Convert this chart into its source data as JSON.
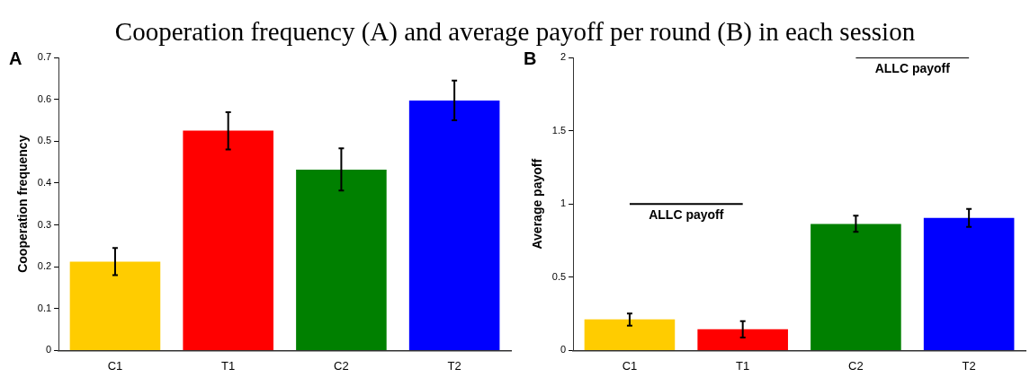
{
  "chart_data": [
    {
      "type": "bar",
      "title": "A",
      "annotations": [
        "Cooperation frequency (A) and average payoff per round (B) in each session"
      ],
      "ylabel": "Cooperation frequency",
      "categories": [
        "C1",
        "T1",
        "C2",
        "T2"
      ],
      "values": [
        0.212,
        0.525,
        0.432,
        0.597
      ],
      "colors": [
        "#ffcc00",
        "#ff0000",
        "#008000",
        "#0000ff"
      ],
      "errors": [
        [
          0.18,
          0.245
        ],
        [
          0.48,
          0.569
        ],
        [
          0.382,
          0.483
        ],
        [
          0.55,
          0.645
        ]
      ],
      "ylim": [
        0,
        0.7
      ],
      "yticks": [
        0,
        0.1,
        0.2,
        0.3,
        0.4,
        0.5,
        0.6,
        0.7
      ],
      "grid": false,
      "legend": false
    },
    {
      "type": "bar",
      "title": "B",
      "ylabel": "Average payoff",
      "categories": [
        "C1",
        "T1",
        "C2",
        "T2"
      ],
      "marker": "none",
      "series": [
        {
          "colors": [
            "#ffcc00",
            "#ff0000",
            "#008000",
            "#0000ff"
          ],
          "values": [
            0.212,
            0.145,
            0.863,
            0.905
          ],
          "errors": [
            [
              0.169,
              0.252
            ],
            [
              0.088,
              0.2
            ],
            [
              0.81,
              0.92
            ],
            [
              0.843,
              0.966
            ]
          ]
        },
        {
          "type": "line",
          "name": "ALLC payoff",
          "color": "#000000",
          "values": [
            1,
            1,
            null,
            null
          ]
        },
        {
          "type": "line",
          "name": "ALLC payoff",
          "color": "#000000",
          "values": [
            null,
            null,
            2,
            2
          ]
        }
      ],
      "ylim": [
        0,
        2
      ],
      "yticks": [
        0,
        0.5,
        1,
        1.5,
        2
      ],
      "grid": false,
      "legend": false
    }
  ]
}
